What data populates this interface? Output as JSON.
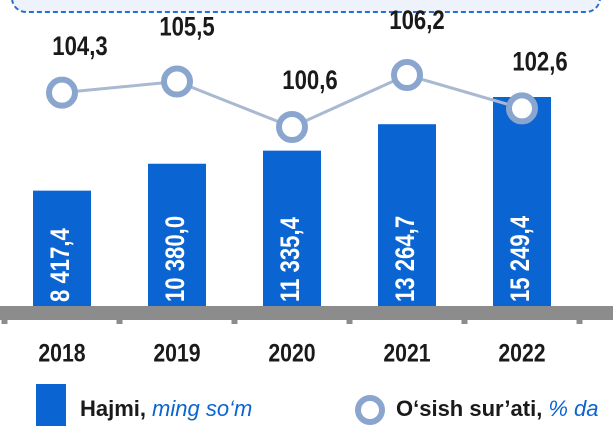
{
  "chart_data": {
    "type": "bar_line",
    "categories": [
      "2018",
      "2019",
      "2020",
      "2021",
      "2022"
    ],
    "series": [
      {
        "name": "Hajmi,",
        "unit": "ming so‘m",
        "color": "#0a64d2",
        "type": "bar",
        "values": [
          8417.4,
          10380.0,
          11335.4,
          13264.7,
          15249.4
        ],
        "value_labels": [
          "8 417,4",
          "10 380,0",
          "11 335,4",
          "13 264,7",
          "15 249,4"
        ]
      },
      {
        "name": "O‘sish sur’ati,",
        "unit": "% da",
        "color": "#a9b9d2",
        "type": "line",
        "values": [
          104.3,
          105.5,
          100.6,
          106.2,
          102.6
        ],
        "value_labels": [
          "104,3",
          "105,5",
          "100,6",
          "106,2",
          "102,6"
        ]
      }
    ]
  }
}
